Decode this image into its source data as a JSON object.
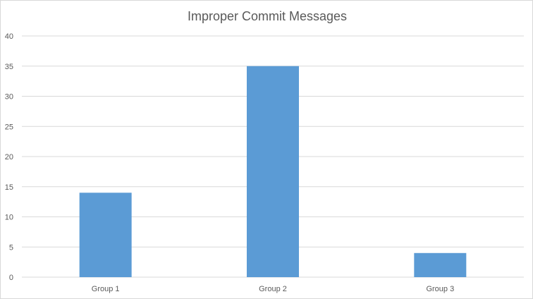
{
  "chart_data": {
    "type": "bar",
    "title": "Improper Commit Messages",
    "categories": [
      "Group 1",
      "Group 2",
      "Group 3"
    ],
    "values": [
      14,
      35,
      4
    ],
    "ylim": [
      0,
      40
    ],
    "yticks": [
      0,
      5,
      10,
      15,
      20,
      25,
      30,
      35,
      40
    ],
    "grid": true,
    "legend": "none",
    "bar_color": "#5b9bd5",
    "grid_color": "#d9d9d9"
  }
}
